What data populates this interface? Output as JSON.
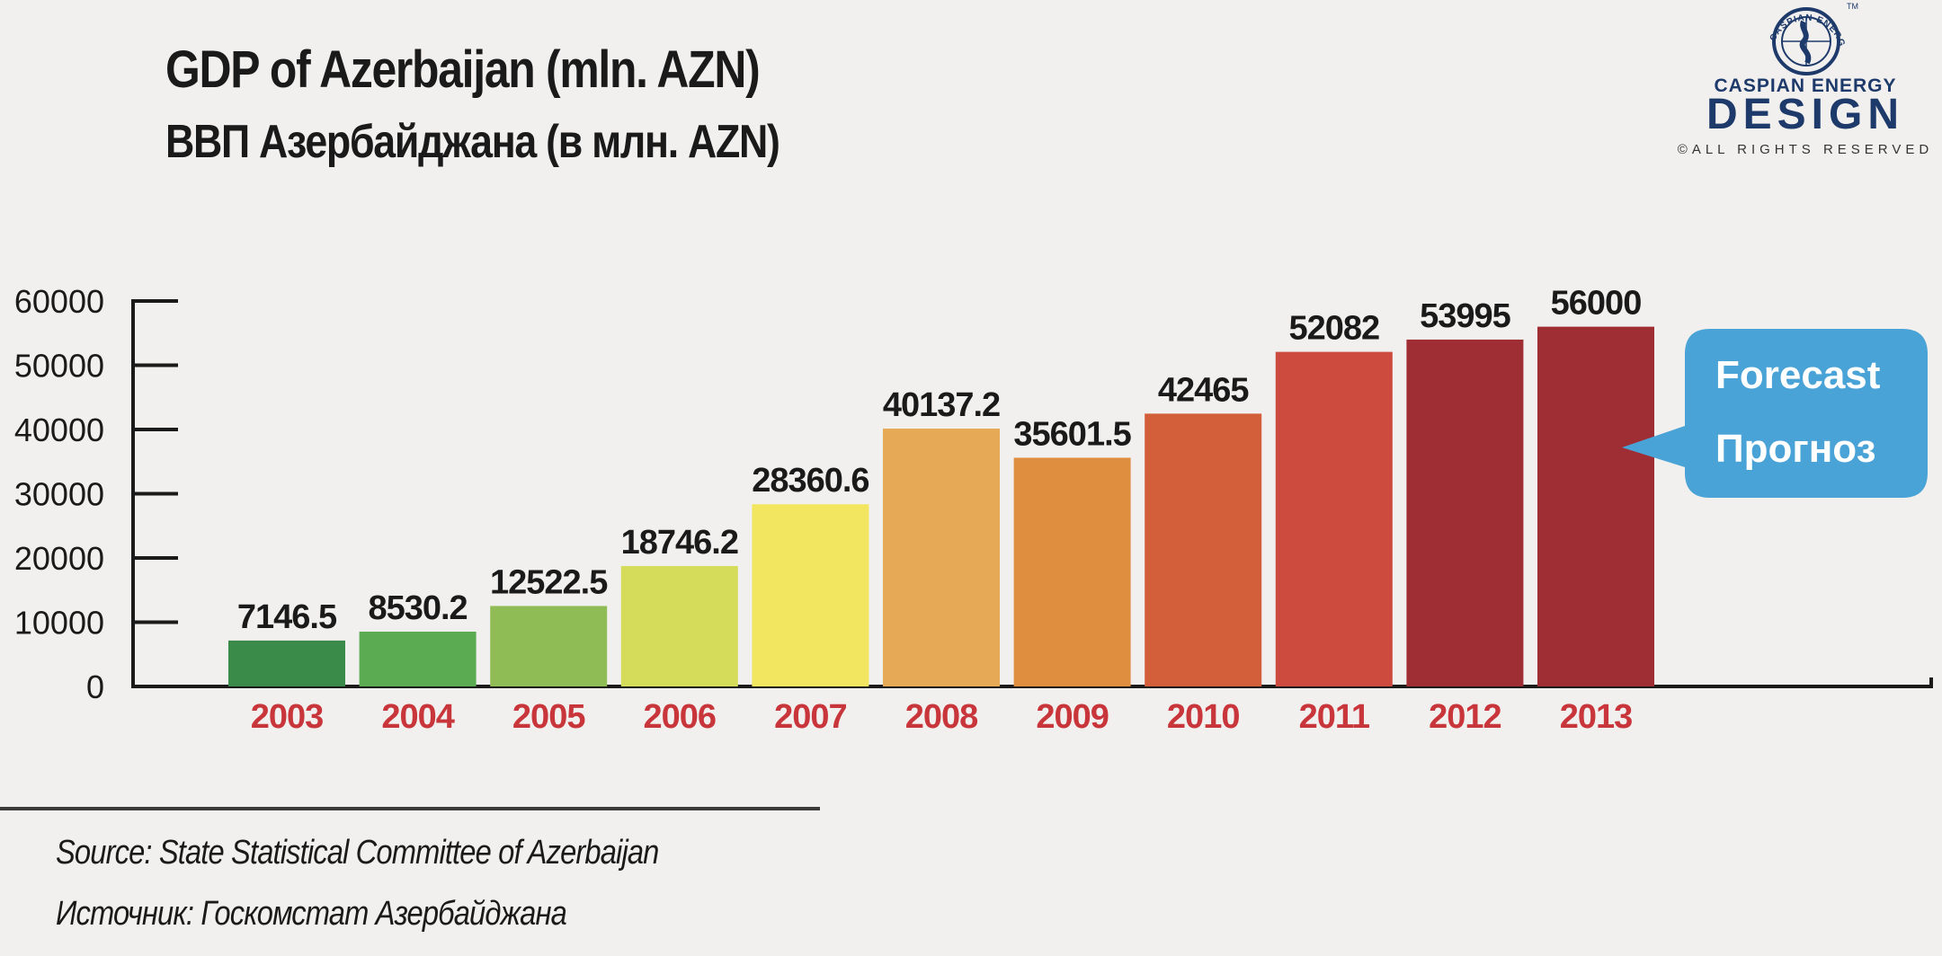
{
  "header": {
    "title": "GDP of Azerbaijan (mln. AZN)",
    "subtitle": "ВВП Азербайджана (в млн. AZN)"
  },
  "logo": {
    "arc_text": "CASPIAN ENERGY",
    "tm": "TM",
    "brand": "CASPIAN ENERGY",
    "design": "DESIGN",
    "rights": "©ALL RIGHTS RESERVED",
    "color": "#1d3a6b"
  },
  "callout": {
    "line1": "Forecast",
    "line2": "Прогноз",
    "color": "#4aa3d6"
  },
  "source": {
    "en": "Source: State Statistical Committee of Azerbaijan",
    "ru": "Источник: Госкомстат Азербайджана"
  },
  "chart_data": {
    "type": "bar",
    "title": "GDP of Azerbaijan (mln. AZN)",
    "categories": [
      "2003",
      "2004",
      "2005",
      "2006",
      "2007",
      "2008",
      "2009",
      "2010",
      "2011",
      "2012",
      "2013"
    ],
    "values": [
      7146.5,
      8530.2,
      12522.5,
      18746.2,
      28360.6,
      40137.2,
      35601.5,
      42465,
      52082,
      53995,
      56000
    ],
    "value_labels": [
      "7146.5",
      "8530.2",
      "12522.5",
      "18746.2",
      "28360.6",
      "40137.2",
      "35601.5",
      "42465",
      "52082",
      "53995",
      "56000"
    ],
    "colors": [
      "#3a8a4a",
      "#5aab52",
      "#8fbc55",
      "#d4dc5a",
      "#f2e660",
      "#e6a955",
      "#df8e40",
      "#d35f3a",
      "#cc4a3e",
      "#9e2e34",
      "#9e2e34"
    ],
    "yticks": [
      "0",
      "10000",
      "20000",
      "30000",
      "40000",
      "50000",
      "60000"
    ],
    "ylim": [
      0,
      60000
    ],
    "category_label_color": "#c8363b",
    "grid": false,
    "forecast_categories": [
      "2013"
    ]
  }
}
